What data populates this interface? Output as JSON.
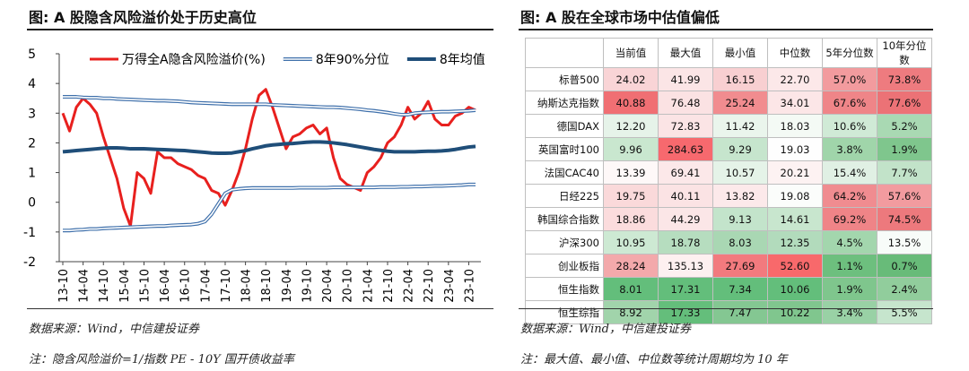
{
  "chart_data": {
    "type": "line",
    "title": "图: A 股隐含风险溢价处于历史高位",
    "categories": [
      "13-10",
      null,
      null,
      "14-04",
      null,
      null,
      "14-10",
      null,
      null,
      "15-04",
      null,
      null,
      "15-10",
      null,
      null,
      "16-04",
      null,
      null,
      "16-10",
      null,
      null,
      "17-04",
      null,
      null,
      "17-10",
      null,
      null,
      "18-04",
      null,
      null,
      "18-10",
      null,
      null,
      "19-04",
      null,
      null,
      "19-10",
      null,
      null,
      "20-04",
      null,
      null,
      "20-10",
      null,
      null,
      "21-04",
      null,
      null,
      "21-10",
      null,
      null,
      "22-04",
      null,
      null,
      "22-10",
      null,
      null,
      "23-04",
      null,
      null,
      "23-10",
      null
    ],
    "ylim": [
      -2,
      5
    ],
    "yticks": [
      -2,
      -1,
      0,
      1,
      2,
      3,
      4,
      5
    ],
    "legend": "top",
    "series": [
      {
        "name": "万得全A隐含风险溢价(%)",
        "color": "#e8201e",
        "style": "solid",
        "values": [
          3.0,
          2.4,
          3.2,
          3.5,
          3.3,
          3.0,
          2.2,
          1.5,
          0.8,
          -0.2,
          -0.8,
          1.0,
          0.8,
          0.3,
          1.7,
          1.5,
          1.5,
          1.3,
          1.2,
          1.1,
          0.9,
          0.8,
          0.4,
          0.3,
          -0.1,
          0.4,
          1.0,
          1.8,
          2.8,
          3.6,
          3.8,
          3.2,
          2.5,
          1.8,
          2.2,
          2.3,
          2.5,
          2.6,
          2.3,
          2.5,
          1.5,
          0.8,
          0.6,
          0.5,
          0.4,
          1.0,
          1.2,
          1.5,
          2.0,
          2.2,
          2.6,
          3.2,
          2.8,
          3.0,
          3.4,
          2.8,
          2.6,
          2.6,
          2.9,
          3.0,
          3.2,
          3.1
        ]
      },
      {
        "name": "8年90%分位",
        "color": "#3f70ab",
        "style": "double",
        "values": [
          3.55,
          3.55,
          3.55,
          3.53,
          3.52,
          3.52,
          3.5,
          3.5,
          3.48,
          3.47,
          3.46,
          3.45,
          3.44,
          3.43,
          3.42,
          3.42,
          3.41,
          3.4,
          3.38,
          3.36,
          3.35,
          3.34,
          3.33,
          3.32,
          3.31,
          3.3,
          3.3,
          3.3,
          3.3,
          3.3,
          3.3,
          3.28,
          3.27,
          3.26,
          3.25,
          3.24,
          3.23,
          3.22,
          3.21,
          3.2,
          3.2,
          3.19,
          3.17,
          3.15,
          3.13,
          3.1,
          3.08,
          3.05,
          3.02,
          2.98,
          2.95,
          2.95,
          3.0,
          3.02,
          3.03,
          3.04,
          3.05,
          3.05,
          3.06,
          3.07,
          3.08,
          3.1
        ]
      },
      {
        "color": "#3f70ab",
        "style": "double",
        "values": [
          -0.95,
          -0.95,
          -0.93,
          -0.92,
          -0.9,
          -0.9,
          -0.88,
          -0.87,
          -0.86,
          -0.85,
          -0.84,
          -0.83,
          -0.82,
          -0.81,
          -0.8,
          -0.8,
          -0.78,
          -0.77,
          -0.76,
          -0.75,
          -0.72,
          -0.65,
          -0.4,
          -0.05,
          0.3,
          0.42,
          0.45,
          0.47,
          0.48,
          0.48,
          0.48,
          0.48,
          0.48,
          0.48,
          0.48,
          0.49,
          0.49,
          0.49,
          0.49,
          0.49,
          0.5,
          0.5,
          0.5,
          0.5,
          0.5,
          0.5,
          0.5,
          0.51,
          0.51,
          0.51,
          0.52,
          0.52,
          0.53,
          0.53,
          0.54,
          0.55,
          0.55,
          0.56,
          0.57,
          0.58,
          0.6,
          0.6
        ]
      },
      {
        "name": "8年均值",
        "color": "#1f4e79",
        "style": "thick",
        "values": [
          1.7,
          1.72,
          1.74,
          1.76,
          1.78,
          1.8,
          1.82,
          1.83,
          1.83,
          1.82,
          1.8,
          1.8,
          1.8,
          1.79,
          1.78,
          1.77,
          1.76,
          1.75,
          1.74,
          1.72,
          1.7,
          1.68,
          1.66,
          1.65,
          1.65,
          1.66,
          1.7,
          1.74,
          1.8,
          1.85,
          1.9,
          1.93,
          1.95,
          1.97,
          1.98,
          2.0,
          2.02,
          2.03,
          2.03,
          2.02,
          2.0,
          1.97,
          1.94,
          1.9,
          1.86,
          1.82,
          1.78,
          1.75,
          1.72,
          1.7,
          1.7,
          1.7,
          1.7,
          1.71,
          1.72,
          1.72,
          1.73,
          1.75,
          1.78,
          1.82,
          1.86,
          1.88
        ]
      }
    ]
  },
  "right_panel": {
    "title": "图: A 股在全球市场中估值偏低",
    "table": {
      "header": [
        "当前值",
        "最大值",
        "最小值",
        "中位数",
        "5年分位数",
        "10年分位数"
      ],
      "rows": [
        [
          "标普500",
          "24.02",
          "41.99",
          "16.15",
          "22.70",
          "57.0%",
          "73.8%"
        ],
        [
          "纳斯达克指数",
          "40.88",
          "76.48",
          "25.24",
          "34.01",
          "67.6%",
          "77.6%"
        ],
        [
          "德国DAX",
          "12.20",
          "72.83",
          "11.42",
          "18.03",
          "10.6%",
          "5.2%"
        ],
        [
          "英国富时100",
          "9.96",
          "284.63",
          "9.29",
          "19.03",
          "3.8%",
          "1.9%"
        ],
        [
          "法国CAC40",
          "13.39",
          "69.41",
          "10.57",
          "20.21",
          "15.4%",
          "7.7%"
        ],
        [
          "日经225",
          "19.75",
          "40.11",
          "13.82",
          "19.08",
          "64.2%",
          "57.6%"
        ],
        [
          "韩国综合指数",
          "18.86",
          "44.29",
          "9.13",
          "14.61",
          "69.2%",
          "74.5%"
        ],
        [
          "沪深300",
          "10.95",
          "18.78",
          "8.03",
          "12.35",
          "4.5%",
          "13.5%"
        ],
        [
          "创业板指",
          "28.24",
          "135.13",
          "27.69",
          "52.60",
          "1.1%",
          "0.7%"
        ],
        [
          "恒生指数",
          "8.01",
          "17.31",
          "7.34",
          "10.06",
          "1.9%",
          "2.4%"
        ],
        [
          "恒生综指",
          "8.92",
          "17.33",
          "7.47",
          "10.22",
          "3.4%",
          "5.5%"
        ]
      ],
      "cell_colors": [
        [
          "#f9d4d6",
          "#fbe5e6",
          "#f8cfd1",
          "#fce8e9",
          "#f29b9e",
          "#ee7b7f"
        ],
        [
          "#f06f73",
          "#fbe2e3",
          "#f18c8f",
          "#fce6e7",
          "#ef8588",
          "#ec7276"
        ],
        [
          "#e6f3e9",
          "#fbe4e5",
          "#eaf5ec",
          "#f4faf5",
          "#d0ead6",
          "#a9d9b3"
        ],
        [
          "#c9e7cf",
          "#f7696e",
          "#c6e5cd",
          "#fefefe",
          "#a0d5aa",
          "#7fc68d"
        ],
        [
          "#fef8f8",
          "#fce8e9",
          "#e5f3e8",
          "#fdf2f2",
          "#e0f0e4",
          "#c2e3c9"
        ],
        [
          "#fad9da",
          "#fbe3e4",
          "#fce9ea",
          "#fbfdfb",
          "#f08c90",
          "#f29b9f"
        ],
        [
          "#fbdcdd",
          "#fbe6e7",
          "#c3e4cb",
          "#c8e6ce",
          "#ef8487",
          "#ed797d"
        ],
        [
          "#cde9d3",
          "#b6ddbf",
          "#a9d7b3",
          "#b2dbbc",
          "#a3d6ad",
          "#f8fcf9"
        ],
        [
          "#f3a9ab",
          "#fdf0f0",
          "#f27a7e",
          "#f8696b",
          "#6dbf7e",
          "#68bb79"
        ],
        [
          "#63be7b",
          "#63be7b",
          "#63be7b",
          "#63be7b",
          "#7fc68d",
          "#91cd9c"
        ],
        [
          "#a1d4ab",
          "#64be7b",
          "#84c792",
          "#80c68e",
          "#99d1a5",
          "#c6e5cd"
        ]
      ]
    }
  },
  "left_notes": [
    "数据来源：Wind，中信建投证券",
    "注：隐含风险溢价=1/指数 PE - 10Y 国开债收益率"
  ],
  "right_notes": [
    "数据来源：Wind，中信建投证券",
    "注：最大值、最小值、中位数等统计周期均为 10 年"
  ]
}
